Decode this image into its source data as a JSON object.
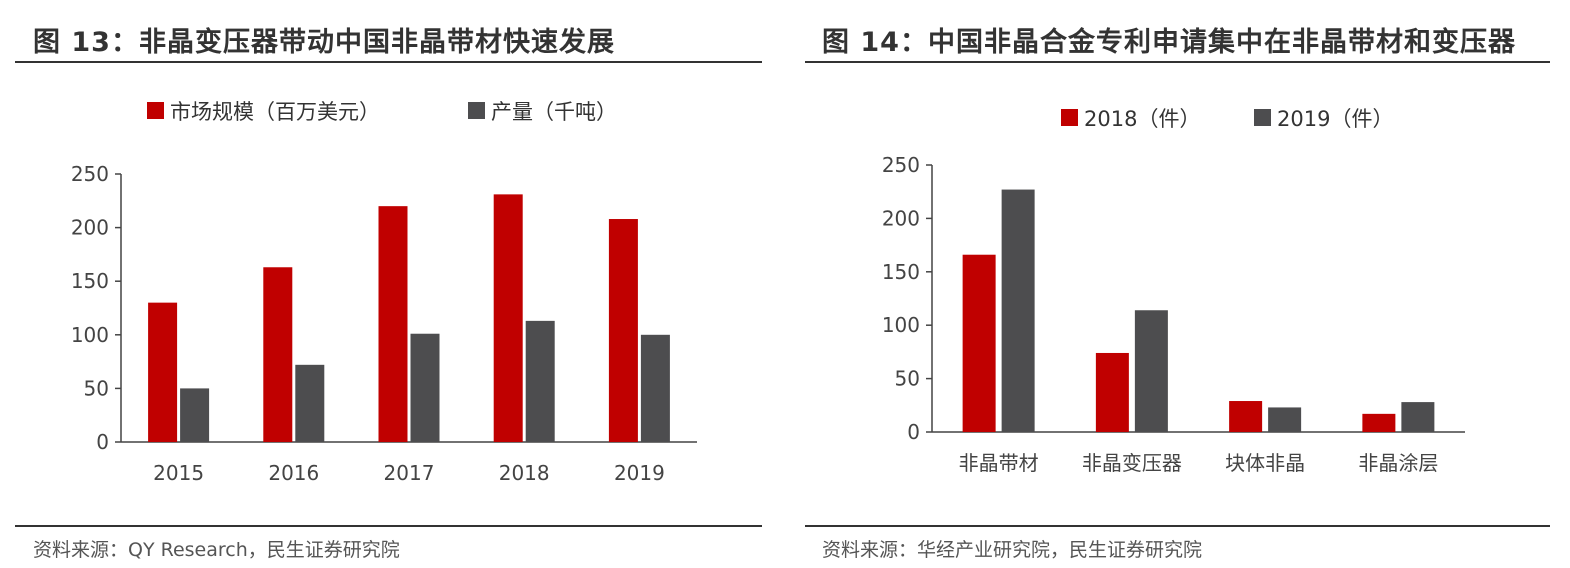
{
  "charts": {
    "left": {
      "title": "图 13：非晶变压器带动中国非晶带材快速发展",
      "source": "资料来源：QY Research，民生证券研究院"
    },
    "right": {
      "title": "图 14：中国非晶合金专利申请集中在非晶带材和变压器",
      "source": "资料来源：华经产业研究院，民生证券研究院"
    }
  },
  "chart_data": [
    {
      "type": "bar",
      "title": "图 13：非晶变压器带动中国非晶带材快速发展",
      "categories": [
        "2015",
        "2016",
        "2017",
        "2018",
        "2019"
      ],
      "series": [
        {
          "name": "市场规模（百万美元）",
          "color": "#C00000",
          "values": [
            130,
            163,
            220,
            231,
            208
          ]
        },
        {
          "name": "产量（千吨）",
          "color": "#4D4D4F",
          "values": [
            50,
            72,
            101,
            113,
            100
          ]
        }
      ],
      "yticks": [
        "0",
        "50",
        "100",
        "150",
        "200",
        "250"
      ],
      "ylim": [
        0,
        250
      ],
      "xlabel": "",
      "ylabel": "",
      "legend": "top-center"
    },
    {
      "type": "bar",
      "title": "图 14：中国非晶合金专利申请集中在非晶带材和变压器",
      "categories": [
        "非晶带材",
        "非晶变压器",
        "块体非晶",
        "非晶涂层"
      ],
      "series": [
        {
          "name": "2018（件）",
          "color": "#C00000",
          "values": [
            166,
            74,
            29,
            17
          ]
        },
        {
          "name": "2019（件）",
          "color": "#4D4D4F",
          "values": [
            227,
            114,
            23,
            28
          ]
        }
      ],
      "yticks": [
        "0",
        "50",
        "100",
        "150",
        "200",
        "250"
      ],
      "ylim": [
        0,
        250
      ],
      "xlabel": "",
      "ylabel": "",
      "legend": "top-center"
    }
  ]
}
